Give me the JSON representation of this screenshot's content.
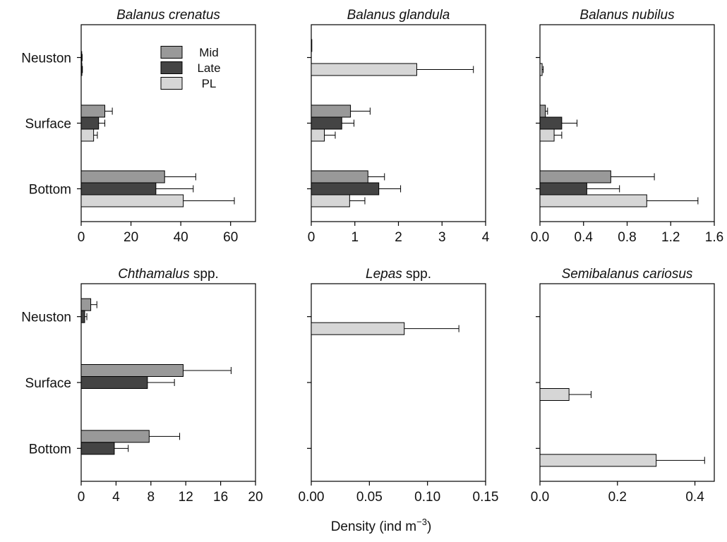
{
  "figure": {
    "xlabel": "Density (ind m",
    "xlabel_sup": "−3",
    "xlabel_end": ")"
  },
  "colors": {
    "Mid": "#999999",
    "Late": "#444444",
    "PL": "#d6d6d6"
  },
  "legend": {
    "placement": "top-right of first panel",
    "entries": [
      "Mid",
      "Late",
      "PL"
    ]
  },
  "chart_data": [
    {
      "type": "bar",
      "orientation": "horizontal",
      "title": "Balanus crenatus",
      "title_suffix": "",
      "categories": [
        "Neuston",
        "Surface",
        "Bottom"
      ],
      "xlim": [
        0,
        70
      ],
      "xticks": [
        "0",
        "20",
        "40",
        "60"
      ],
      "xtick_values": [
        0,
        20,
        40,
        60
      ],
      "series": [
        {
          "name": "Mid",
          "values": [
            0.0,
            9.5,
            33.5
          ],
          "errors": [
            0.0,
            3.0,
            12.5
          ]
        },
        {
          "name": "Late",
          "values": [
            0.2,
            7.0,
            30.0
          ],
          "errors": [
            0.2,
            2.5,
            15.0
          ]
        },
        {
          "name": "PL",
          "values": [
            0.3,
            5.0,
            41.0
          ],
          "errors": [
            0.2,
            1.5,
            20.5
          ]
        }
      ]
    },
    {
      "type": "bar",
      "orientation": "horizontal",
      "title": "Balanus glandula",
      "title_suffix": "",
      "categories": [
        "Neuston",
        "Surface",
        "Bottom"
      ],
      "xlim": [
        0,
        4
      ],
      "xticks": [
        "0",
        "1",
        "2",
        "3",
        "4"
      ],
      "xtick_values": [
        0,
        1,
        2,
        3,
        4
      ],
      "series": [
        {
          "name": "Mid",
          "values": [
            0.01,
            0.9,
            1.3
          ],
          "errors": [
            0.0,
            0.45,
            0.38
          ]
        },
        {
          "name": "Late",
          "values": [
            0.0,
            0.7,
            1.55
          ],
          "errors": [
            0.0,
            0.28,
            0.5
          ]
        },
        {
          "name": "PL",
          "values": [
            2.42,
            0.3,
            0.88
          ],
          "errors": [
            1.3,
            0.25,
            0.35
          ]
        }
      ]
    },
    {
      "type": "bar",
      "orientation": "horizontal",
      "title": "Balanus nubilus",
      "title_suffix": "",
      "categories": [
        "Neuston",
        "Surface",
        "Bottom"
      ],
      "xlim": [
        0,
        1.6
      ],
      "xticks": [
        "0.0",
        "0.4",
        "0.8",
        "1.2",
        "1.6"
      ],
      "xtick_values": [
        0,
        0.4,
        0.8,
        1.2,
        1.6
      ],
      "series": [
        {
          "name": "Mid",
          "values": [
            0.0,
            0.05,
            0.65
          ],
          "errors": [
            0.0,
            0.02,
            0.4
          ]
        },
        {
          "name": "Late",
          "values": [
            0.0,
            0.2,
            0.43
          ],
          "errors": [
            0.0,
            0.14,
            0.3
          ]
        },
        {
          "name": "PL",
          "values": [
            0.02,
            0.13,
            0.98
          ],
          "errors": [
            0.01,
            0.07,
            0.47
          ]
        }
      ]
    },
    {
      "type": "bar",
      "orientation": "horizontal",
      "title": "Chthamalus",
      "title_suffix": " spp.",
      "categories": [
        "Neuston",
        "Surface",
        "Bottom"
      ],
      "xlim": [
        0,
        20
      ],
      "xticks": [
        "0",
        "4",
        "8",
        "12",
        "16",
        "20"
      ],
      "xtick_values": [
        0,
        4,
        8,
        12,
        16,
        20
      ],
      "series": [
        {
          "name": "Mid",
          "values": [
            1.1,
            11.7,
            7.8
          ],
          "errors": [
            0.7,
            5.5,
            3.5
          ]
        },
        {
          "name": "Late",
          "values": [
            0.4,
            7.6,
            3.8
          ],
          "errors": [
            0.25,
            3.1,
            1.6
          ]
        },
        {
          "name": "PL",
          "values": [
            0.0,
            0.0,
            0.0
          ],
          "errors": [
            0.0,
            0.0,
            0.0
          ]
        }
      ]
    },
    {
      "type": "bar",
      "orientation": "horizontal",
      "title": "Lepas",
      "title_suffix": " spp.",
      "categories": [
        "Neuston",
        "Surface",
        "Bottom"
      ],
      "xlim": [
        0,
        0.15
      ],
      "xticks": [
        "0.00",
        "0.05",
        "0.10",
        "0.15"
      ],
      "xtick_values": [
        0,
        0.05,
        0.1,
        0.15
      ],
      "series": [
        {
          "name": "Mid",
          "values": [
            0.0,
            0.0,
            0.0
          ],
          "errors": [
            0.0,
            0.0,
            0.0
          ]
        },
        {
          "name": "Late",
          "values": [
            0.0,
            0.0,
            0.0
          ],
          "errors": [
            0.0,
            0.0,
            0.0
          ]
        },
        {
          "name": "PL",
          "values": [
            0.08,
            0.0,
            0.0
          ],
          "errors": [
            0.047,
            0.0,
            0.0
          ]
        }
      ]
    },
    {
      "type": "bar",
      "orientation": "horizontal",
      "title": "Semibalanus cariosus",
      "title_suffix": "",
      "categories": [
        "Neuston",
        "Surface",
        "Bottom"
      ],
      "xlim": [
        0,
        0.45
      ],
      "xticks": [
        "0.0",
        "0.2",
        "0.4"
      ],
      "xtick_values": [
        0,
        0.2,
        0.4
      ],
      "series": [
        {
          "name": "Mid",
          "values": [
            0.0,
            0.0,
            0.0
          ],
          "errors": [
            0.0,
            0.0,
            0.0
          ]
        },
        {
          "name": "Late",
          "values": [
            0.0,
            0.0,
            0.0
          ],
          "errors": [
            0.0,
            0.0,
            0.0
          ]
        },
        {
          "name": "PL",
          "values": [
            0.0,
            0.075,
            0.3
          ],
          "errors": [
            0.0,
            0.057,
            0.125
          ]
        }
      ]
    }
  ]
}
